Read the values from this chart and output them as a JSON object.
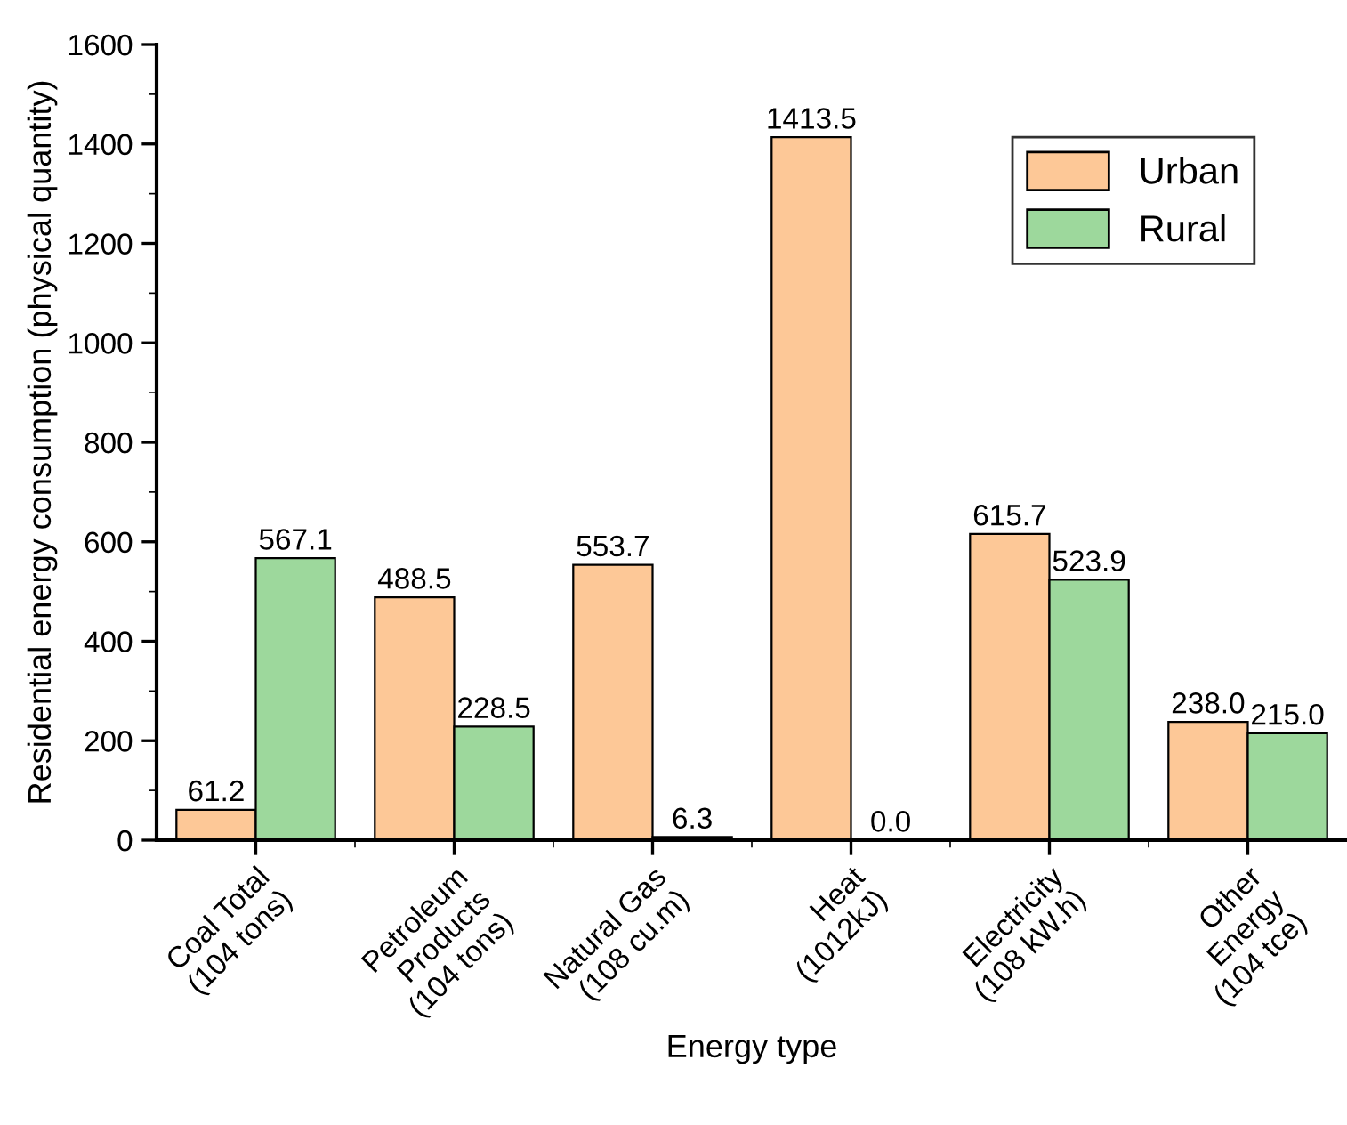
{
  "chart_data": {
    "type": "bar",
    "xlabel": "Energy type",
    "ylabel": "Residential energy consumption (physical quantity)",
    "categories": [
      "Coal Total\n(104 tons)",
      "Petroleum\nProducts\n(104 tons)",
      "Natural Gas\n(108 cu.m)",
      "Heat\n(1012kJ)",
      "Electricity\n(108 kW.h)",
      "Other\nEnergy\n(104 tce)"
    ],
    "series": [
      {
        "name": "Urban",
        "color": "#fdc897",
        "values": [
          61.2,
          488.5,
          553.7,
          1413.5,
          615.7,
          238.0
        ],
        "value_labels": [
          "61.2",
          "488.5",
          "553.7",
          "1413.5",
          "615.7",
          "238.0"
        ]
      },
      {
        "name": "Rural",
        "color": "#9dd89c",
        "values": [
          567.1,
          228.5,
          6.3,
          0.0,
          523.9,
          215.0
        ],
        "value_labels": [
          "567.1",
          "228.5",
          "6.3",
          "0.0",
          "523.9",
          "215.0"
        ]
      }
    ],
    "ylim": [
      0,
      1600
    ],
    "yticks": [
      0,
      200,
      400,
      600,
      800,
      1000,
      1200,
      1400,
      1600
    ],
    "grid": false,
    "legend": "top right"
  }
}
